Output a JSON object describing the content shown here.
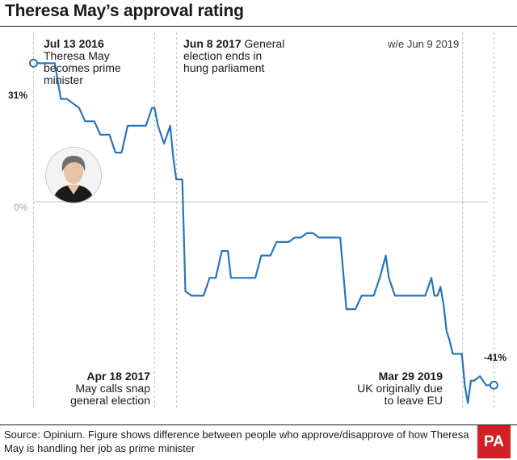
{
  "title": "Theresa May’s approval rating",
  "week_ending_note": "w/e Jun 9 2019",
  "source": "Source: Opinium. Figure shows difference between people who approve/disapprove of how Theresa May is handling her job as prime minister",
  "logo": "PA",
  "portrait": "photo-of-theresa-may",
  "colors": {
    "line": "#2b74b8",
    "marker_fill": "#ffffff",
    "dashed_lines": "#bdbdbd",
    "logo_bg": "#d31f26"
  },
  "annotations": {
    "jul2016": {
      "date": "Jul 13 2016",
      "text": [
        "Theresa May",
        "becomes prime",
        "minister"
      ]
    },
    "jun2017": {
      "date": "Jun 8 2017",
      "text": [
        "General",
        "election ends in",
        "hung parliament"
      ]
    },
    "apr2017": {
      "date": "Apr 18 2017",
      "text": [
        "May calls snap",
        "general election"
      ]
    },
    "mar2019": {
      "date": "Mar 29 2019",
      "text": [
        "UK originally due",
        "to leave EU"
      ]
    }
  },
  "chart_data": {
    "type": "line",
    "title": "Theresa May’s approval rating",
    "xlabel": "",
    "ylabel": "",
    "y_unit": "%",
    "ylim": [
      -46,
      37
    ],
    "xlim": [
      "2016-07-01",
      "2019-06-25"
    ],
    "grid": false,
    "y_tick_labels": [
      "31%",
      "0%",
      "-41%"
    ],
    "zero_line": true,
    "event_lines": [
      "2016-07-13",
      "2017-04-18",
      "2017-06-08",
      "2019-03-29",
      "2019-06-09"
    ],
    "start_label": "31%",
    "end_label": "-41%",
    "series": [
      {
        "points": [
          [
            "2016-07-13",
            31
          ],
          [
            "2016-07-20",
            31
          ],
          [
            "2016-08-10",
            31
          ],
          [
            "2016-08-31",
            31
          ],
          [
            "2016-09-14",
            23
          ],
          [
            "2016-09-28",
            23
          ],
          [
            "2016-10-12",
            22
          ],
          [
            "2016-10-26",
            21
          ],
          [
            "2016-11-09",
            18
          ],
          [
            "2016-11-30",
            18
          ],
          [
            "2016-12-14",
            15
          ],
          [
            "2017-01-04",
            15
          ],
          [
            "2017-01-18",
            11
          ],
          [
            "2017-02-01",
            11
          ],
          [
            "2017-02-15",
            17
          ],
          [
            "2017-03-01",
            17
          ],
          [
            "2017-03-15",
            17
          ],
          [
            "2017-03-29",
            17
          ],
          [
            "2017-04-12",
            21
          ],
          [
            "2017-04-18",
            21
          ],
          [
            "2017-04-26",
            17
          ],
          [
            "2017-05-10",
            13
          ],
          [
            "2017-05-24",
            17
          ],
          [
            "2017-05-31",
            10
          ],
          [
            "2017-06-07",
            5
          ],
          [
            "2017-06-14",
            5
          ],
          [
            "2017-06-21",
            5
          ],
          [
            "2017-06-28",
            -20
          ],
          [
            "2017-07-12",
            -21
          ],
          [
            "2017-07-26",
            -21
          ],
          [
            "2017-08-09",
            -21
          ],
          [
            "2017-08-23",
            -17
          ],
          [
            "2017-09-06",
            -17
          ],
          [
            "2017-09-20",
            -11
          ],
          [
            "2017-10-04",
            -11
          ],
          [
            "2017-10-11",
            -17
          ],
          [
            "2017-10-25",
            -17
          ],
          [
            "2017-11-08",
            -17
          ],
          [
            "2017-11-22",
            -17
          ],
          [
            "2017-12-06",
            -17
          ],
          [
            "2017-12-20",
            -12
          ],
          [
            "2018-01-10",
            -12
          ],
          [
            "2018-01-24",
            -9
          ],
          [
            "2018-02-07",
            -9
          ],
          [
            "2018-02-21",
            -9
          ],
          [
            "2018-03-07",
            -8
          ],
          [
            "2018-03-21",
            -8
          ],
          [
            "2018-04-04",
            -7
          ],
          [
            "2018-04-18",
            -7
          ],
          [
            "2018-05-02",
            -8
          ],
          [
            "2018-05-16",
            -8
          ],
          [
            "2018-06-06",
            -8
          ],
          [
            "2018-06-20",
            -8
          ],
          [
            "2018-07-04",
            -24
          ],
          [
            "2018-07-25",
            -24
          ],
          [
            "2018-08-08",
            -21
          ],
          [
            "2018-08-22",
            -21
          ],
          [
            "2018-09-05",
            -21
          ],
          [
            "2018-09-19",
            -17
          ],
          [
            "2018-10-03",
            -12
          ],
          [
            "2018-10-10",
            -17
          ],
          [
            "2018-10-24",
            -21
          ],
          [
            "2018-11-07",
            -21
          ],
          [
            "2018-11-21",
            -21
          ],
          [
            "2018-12-05",
            -21
          ],
          [
            "2018-12-19",
            -21
          ],
          [
            "2019-01-02",
            -21
          ],
          [
            "2019-01-16",
            -17
          ],
          [
            "2019-01-23",
            -21
          ],
          [
            "2019-01-30",
            -21
          ],
          [
            "2019-02-06",
            -19
          ],
          [
            "2019-02-13",
            -23
          ],
          [
            "2019-02-20",
            -29
          ],
          [
            "2019-02-27",
            -31
          ],
          [
            "2019-03-06",
            -34
          ],
          [
            "2019-03-13",
            -34
          ],
          [
            "2019-03-20",
            -34
          ],
          [
            "2019-03-27",
            -34
          ],
          [
            "2019-04-03",
            -41
          ],
          [
            "2019-04-10",
            -45
          ],
          [
            "2019-04-17",
            -40
          ],
          [
            "2019-04-24",
            -40
          ],
          [
            "2019-05-08",
            -39
          ],
          [
            "2019-05-22",
            -41
          ],
          [
            "2019-06-09",
            -41
          ]
        ]
      }
    ]
  }
}
